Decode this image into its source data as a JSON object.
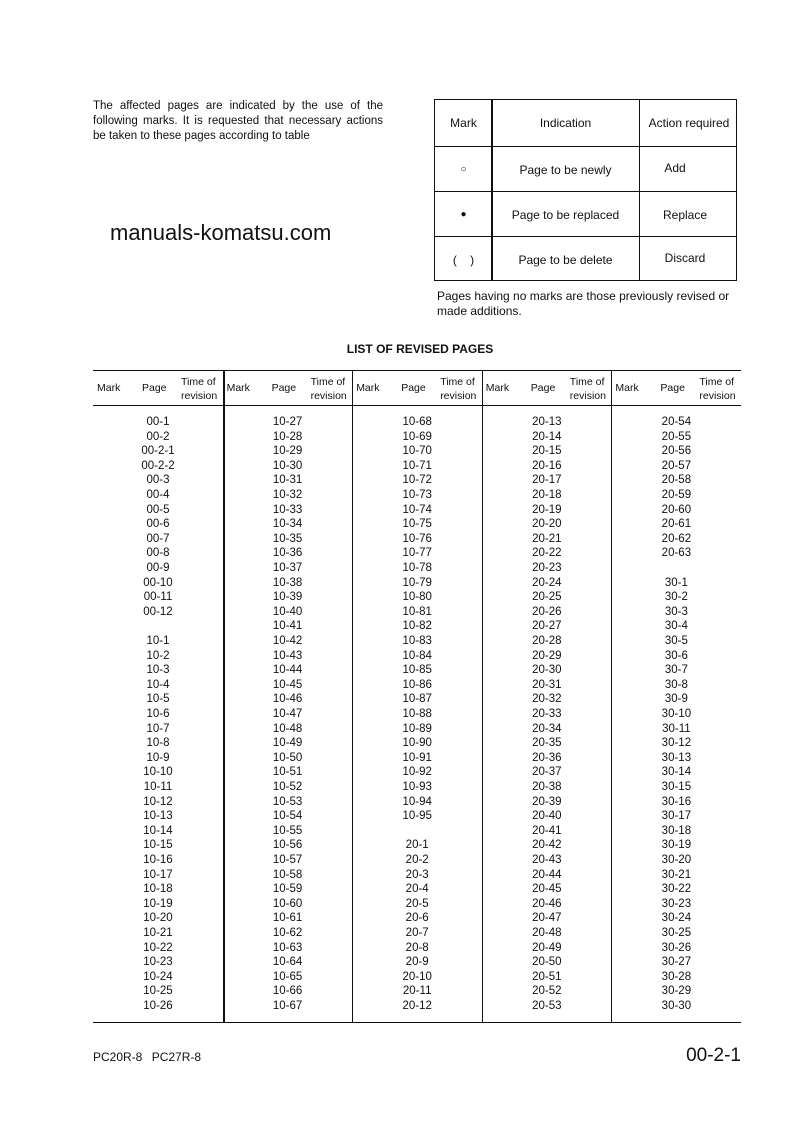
{
  "intro": "The affected pages are indicated by the use of the following marks. It is requested that necessary actions be taken to these pages according to table",
  "legend": {
    "headers": [
      "Mark",
      "Indication",
      "Action required"
    ],
    "rows": [
      {
        "mark": "○",
        "indication": "Page to be newly",
        "action": "Add"
      },
      {
        "mark": "●",
        "indication": "Page to be replaced",
        "action": "Replace"
      },
      {
        "mark": "(    )",
        "indication": "Page to be delete",
        "action": "Discard"
      }
    ]
  },
  "note": "Pages having no marks are those previously revised or made additions.",
  "list_title": "LIST OF REVISED PAGES",
  "list_headers": {
    "mark": "Mark",
    "page": "Page",
    "time1": "Time of",
    "time2": "revision"
  },
  "columns": [
    [
      "00-1",
      "00-2",
      "00-2-1",
      "00-2-2",
      "00-3",
      "00-4",
      "00-5",
      "00-6",
      "00-7",
      "00-8",
      "00-9",
      "00-10",
      "00-11",
      "00-12",
      "",
      "10-1",
      "10-2",
      "10-3",
      "10-4",
      "10-5",
      "10-6",
      "10-7",
      "10-8",
      "10-9",
      "10-10",
      "10-11",
      "10-12",
      "10-13",
      "10-14",
      "10-15",
      "10-16",
      "10-17",
      "10-18",
      "10-19",
      "10-20",
      "10-21",
      "10-22",
      "10-23",
      "10-24",
      "10-25",
      "10-26"
    ],
    [
      "10-27",
      "10-28",
      "10-29",
      "10-30",
      "10-31",
      "10-32",
      "10-33",
      "10-34",
      "10-35",
      "10-36",
      "10-37",
      "10-38",
      "10-39",
      "10-40",
      "10-41",
      "10-42",
      "10-43",
      "10-44",
      "10-45",
      "10-46",
      "10-47",
      "10-48",
      "10-49",
      "10-50",
      "10-51",
      "10-52",
      "10-53",
      "10-54",
      "10-55",
      "10-56",
      "10-57",
      "10-58",
      "10-59",
      "10-60",
      "10-61",
      "10-62",
      "10-63",
      "10-64",
      "10-65",
      "10-66",
      "10-67"
    ],
    [
      "10-68",
      "10-69",
      "10-70",
      "10-71",
      "10-72",
      "10-73",
      "10-74",
      "10-75",
      "10-76",
      "10-77",
      "10-78",
      "10-79",
      "10-80",
      "10-81",
      "10-82",
      "10-83",
      "10-84",
      "10-85",
      "10-86",
      "10-87",
      "10-88",
      "10-89",
      "10-90",
      "10-91",
      "10-92",
      "10-93",
      "10-94",
      "10-95",
      "",
      "20-1",
      "20-2",
      "20-3",
      "20-4",
      "20-5",
      "20-6",
      "20-7",
      "20-8",
      "20-9",
      "20-10",
      "20-11",
      "20-12"
    ],
    [
      "20-13",
      "20-14",
      "20-15",
      "20-16",
      "20-17",
      "20-18",
      "20-19",
      "20-20",
      "20-21",
      "20-22",
      "20-23",
      "20-24",
      "20-25",
      "20-26",
      "20-27",
      "20-28",
      "20-29",
      "20-30",
      "20-31",
      "20-32",
      "20-33",
      "20-34",
      "20-35",
      "20-36",
      "20-37",
      "20-38",
      "20-39",
      "20-40",
      "20-41",
      "20-42",
      "20-43",
      "20-44",
      "20-45",
      "20-46",
      "20-47",
      "20-48",
      "20-49",
      "20-50",
      "20-51",
      "20-52",
      "20-53"
    ],
    [
      "20-54",
      "20-55",
      "20-56",
      "20-57",
      "20-58",
      "20-59",
      "20-60",
      "20-61",
      "20-62",
      "20-63",
      "",
      "30-1",
      "30-2",
      "30-3",
      "30-4",
      "30-5",
      "30-6",
      "30-7",
      "30-8",
      "30-9",
      "30-10",
      "30-11",
      "30-12",
      "30-13",
      "30-14",
      "30-15",
      "30-16",
      "30-17",
      "30-18",
      "30-19",
      "30-20",
      "30-21",
      "30-22",
      "30-23",
      "30-24",
      "30-25",
      "30-26",
      "30-27",
      "30-28",
      "30-29",
      "30-30"
    ]
  ],
  "watermark": "manuals-komatsu.com",
  "footer": {
    "models": "PC20R-8  PC27R-8",
    "page_number": "00-2-1"
  }
}
